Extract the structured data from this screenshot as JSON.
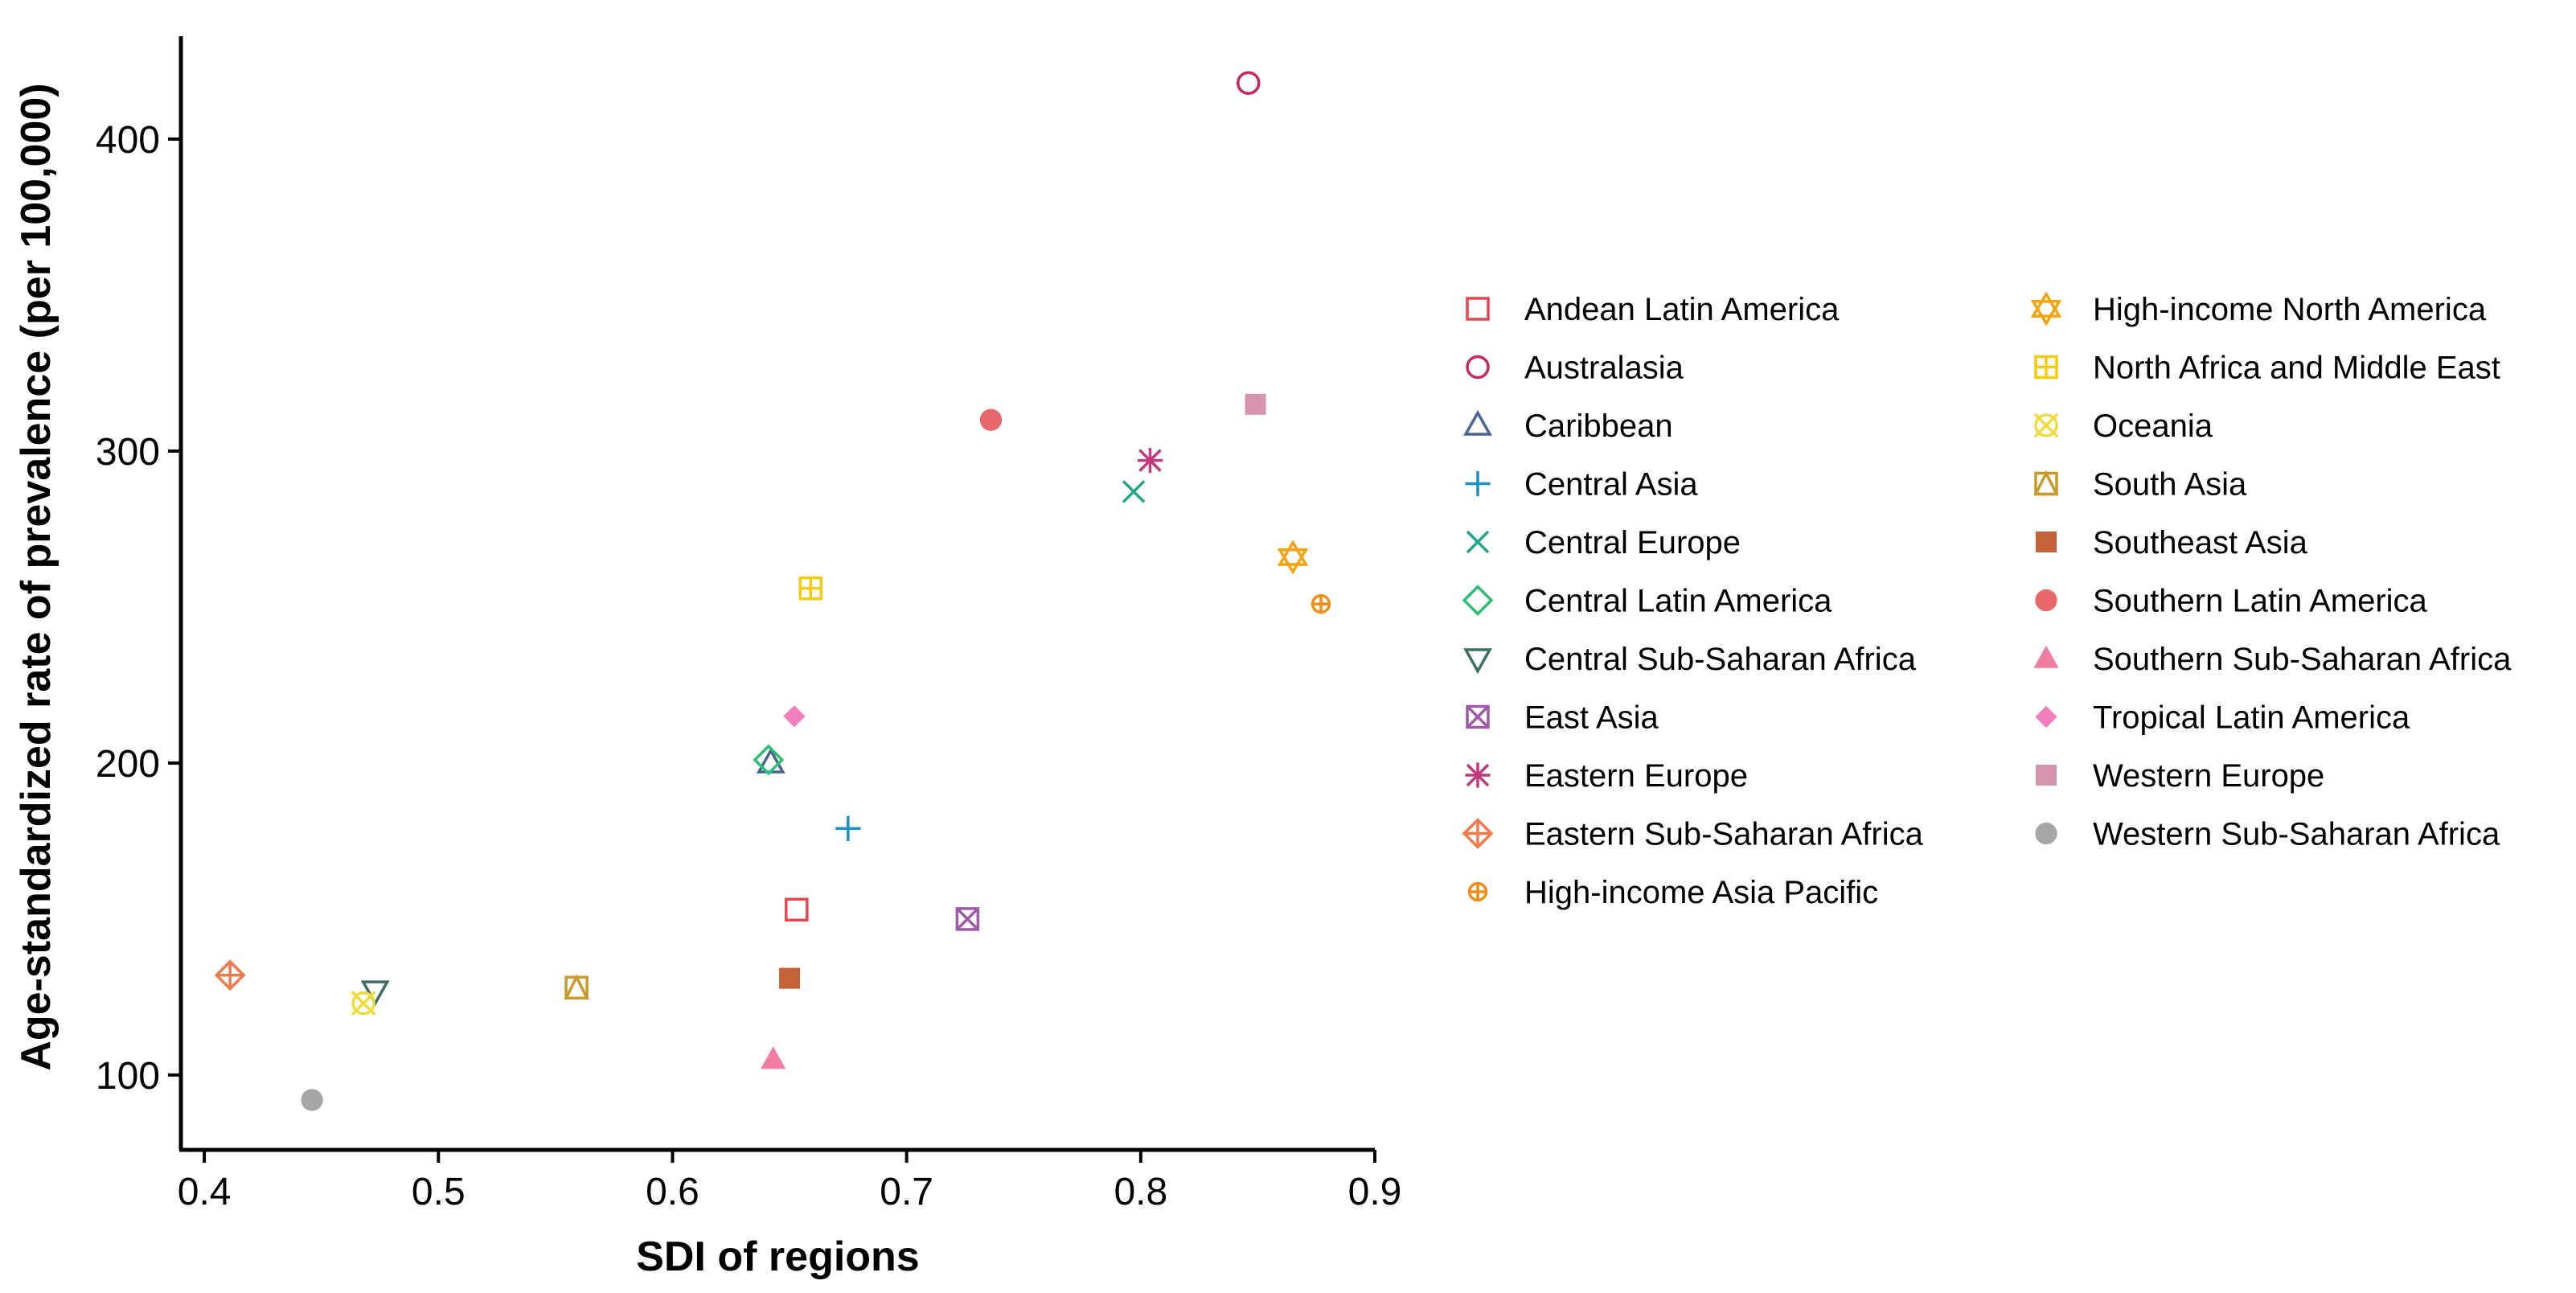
{
  "chart_data": {
    "type": "scatter",
    "title": "",
    "xlabel": "SDI of regions",
    "ylabel": "Age-standardized rate of prevalence (per 100,000)",
    "xlim": [
      0.39,
      0.9
    ],
    "ylim": [
      76,
      433
    ],
    "xticks": [
      0.4,
      0.5,
      0.6,
      0.7,
      0.8,
      0.9
    ],
    "xtick_labels": [
      "0.4",
      "0.5",
      "0.6",
      "0.7",
      "0.8",
      "0.9"
    ],
    "yticks": [
      100,
      200,
      300,
      400
    ],
    "ytick_labels": [
      "100",
      "200",
      "300",
      "400"
    ],
    "grid": false,
    "legend_position": "right",
    "series": [
      {
        "name": "Andean Latin America",
        "x": 0.653,
        "y": 153,
        "marker": "square-open",
        "color": "#E8454C"
      },
      {
        "name": "Australasia",
        "x": 0.846,
        "y": 418,
        "marker": "circle-open",
        "color": "#C2275E"
      },
      {
        "name": "Caribbean",
        "x": 0.642,
        "y": 200,
        "marker": "triangle-open",
        "color": "#4A6491"
      },
      {
        "name": "Central Asia",
        "x": 0.675,
        "y": 179,
        "marker": "plus",
        "color": "#1B8FC2"
      },
      {
        "name": "Central Europe",
        "x": 0.797,
        "y": 287,
        "marker": "cross",
        "color": "#24A587"
      },
      {
        "name": "Central Latin America",
        "x": 0.641,
        "y": 201,
        "marker": "diamond-open",
        "color": "#2DBE74"
      },
      {
        "name": "Central Sub-Saharan Africa",
        "x": 0.473,
        "y": 127,
        "marker": "triangle-down-open",
        "color": "#3C6E66"
      },
      {
        "name": "East Asia",
        "x": 0.726,
        "y": 150,
        "marker": "square-x",
        "color": "#9D5AA6"
      },
      {
        "name": "Eastern Europe",
        "x": 0.804,
        "y": 297,
        "marker": "asterisk",
        "color": "#C2397E"
      },
      {
        "name": "Eastern Sub-Saharan Africa",
        "x": 0.411,
        "y": 132,
        "marker": "circle-plus",
        "color": "#F07A4C"
      },
      {
        "name": "High-income Asia Pacific",
        "x": 0.877,
        "y": 251,
        "marker": "circle-plus-small",
        "color": "#F08C18"
      },
      {
        "name": "High-income North America",
        "x": 0.865,
        "y": 266,
        "marker": "star-of-david",
        "color": "#F2A30F"
      },
      {
        "name": "North Africa and Middle East",
        "x": 0.659,
        "y": 256,
        "marker": "square-plus",
        "color": "#F5CB0E"
      },
      {
        "name": "Oceania",
        "x": 0.468,
        "y": 123,
        "marker": "circle-x",
        "color": "#F0DA3C"
      },
      {
        "name": "South Asia",
        "x": 0.559,
        "y": 128,
        "marker": "square-triangle",
        "color": "#C79A2C"
      },
      {
        "name": "Southeast Asia",
        "x": 0.65,
        "y": 131,
        "marker": "square-filled",
        "color": "#C4633A"
      },
      {
        "name": "Southern Latin America",
        "x": 0.736,
        "y": 310,
        "marker": "circle-filled",
        "color": "#E8676A"
      },
      {
        "name": "Southern Sub-Saharan Africa",
        "x": 0.643,
        "y": 105,
        "marker": "triangle-filled",
        "color": "#F07EA0"
      },
      {
        "name": "Tropical Latin America",
        "x": 0.652,
        "y": 215,
        "marker": "diamond-filled",
        "color": "#F27EBD"
      },
      {
        "name": "Western Europe",
        "x": 0.849,
        "y": 315,
        "marker": "square-filled",
        "color": "#D494AE"
      },
      {
        "name": "Western Sub-Saharan Africa",
        "x": 0.446,
        "y": 92,
        "marker": "circle-filled",
        "color": "#A6A6A6"
      }
    ]
  }
}
